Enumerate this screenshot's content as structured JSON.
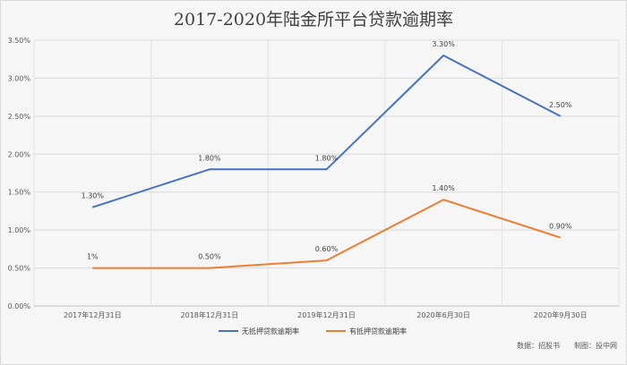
{
  "chart_data": {
    "type": "line",
    "title": "2017-2020年陆金所平台贷款逾期率",
    "xlabel": "",
    "ylabel": "",
    "categories": [
      "2017年12月31日",
      "2018年12月31日",
      "2019年12月31日",
      "2020年6月30日",
      "2020年9月30日"
    ],
    "ylim": [
      0,
      3.5
    ],
    "yticks": [
      "0.00%",
      "0.50%",
      "1.00%",
      "1.50%",
      "2.00%",
      "2.50%",
      "3.00%",
      "3.50%"
    ],
    "grid": true,
    "legend": "bottom",
    "series": [
      {
        "name": "无抵押贷款逾期率",
        "color": "#4472c4",
        "values": [
          1.3,
          1.8,
          1.8,
          3.3,
          2.5
        ],
        "labels": [
          "1.30%",
          "1.80%",
          "1.80%",
          "3.30%",
          "2.50%"
        ]
      },
      {
        "name": "有抵押贷款逾期率",
        "color": "#ed7d31",
        "values": [
          0.5,
          0.5,
          0.6,
          1.4,
          0.9
        ],
        "labels": [
          "1%",
          "0.50%",
          "0.60%",
          "1.40%",
          "0.90%"
        ]
      }
    ],
    "source_note": "数据：招股书　　制图：投中网"
  }
}
